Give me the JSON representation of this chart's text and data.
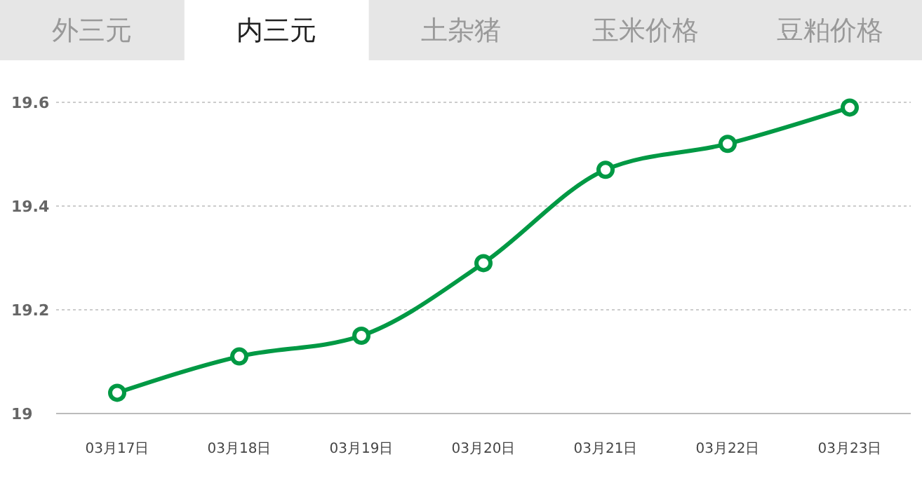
{
  "chart_data": {
    "type": "line",
    "title": "内三元",
    "annotations": [
      "外三元",
      "土杂猪",
      "玉米价格",
      "豆粕价格"
    ],
    "categories": [
      "03月17日",
      "03月18日",
      "03月19日",
      "03月20日",
      "03月21日",
      "03月22日",
      "03月23日"
    ],
    "series": [
      {
        "color": "#009944",
        "values": [
          19.04,
          19.11,
          19.15,
          19.29,
          19.47,
          19.52,
          19.59
        ]
      }
    ],
    "ylim": [
      19,
      19.6
    ],
    "yticks": [
      19,
      19.2,
      19.4,
      19.6
    ],
    "grid": "y",
    "marker": "circle",
    "line_style": "solid"
  }
}
